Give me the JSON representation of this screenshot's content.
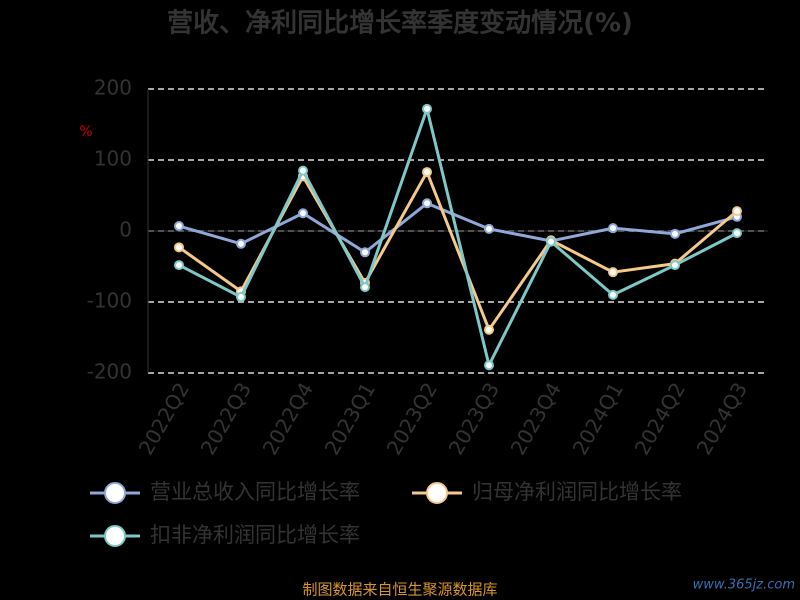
{
  "chart_data": {
    "type": "line",
    "title": "营收、净利同比增长率季度变动情况(%)",
    "y_unit": "%",
    "categories": [
      "2022Q2",
      "2022Q3",
      "2022Q4",
      "2023Q1",
      "2023Q2",
      "2023Q3",
      "2023Q4",
      "2024Q1",
      "2024Q2",
      "2024Q3"
    ],
    "series": [
      {
        "name": "营业总收入同比增长率",
        "color": "#8fa8d8",
        "values": [
          7,
          -18,
          25,
          -30,
          39,
          3,
          -14,
          4,
          -4,
          20
        ]
      },
      {
        "name": "归母净利润同比增长率",
        "color": "#f5c98a",
        "values": [
          -23,
          -85,
          77,
          -73,
          83,
          -139,
          -13,
          -58,
          -46,
          28
        ]
      },
      {
        "name": "扣非净利润同比增长率",
        "color": "#7ec8c8",
        "values": [
          -48,
          -93,
          85,
          -79,
          172,
          -189,
          -15,
          -90,
          -48,
          -3
        ]
      }
    ],
    "ylim": [
      -200,
      200
    ],
    "yticks": [
      -200,
      -100,
      0,
      100,
      200
    ],
    "grid": true,
    "source": "制图数据来自恒生聚源数据库",
    "watermark": "www.365jz.com"
  }
}
